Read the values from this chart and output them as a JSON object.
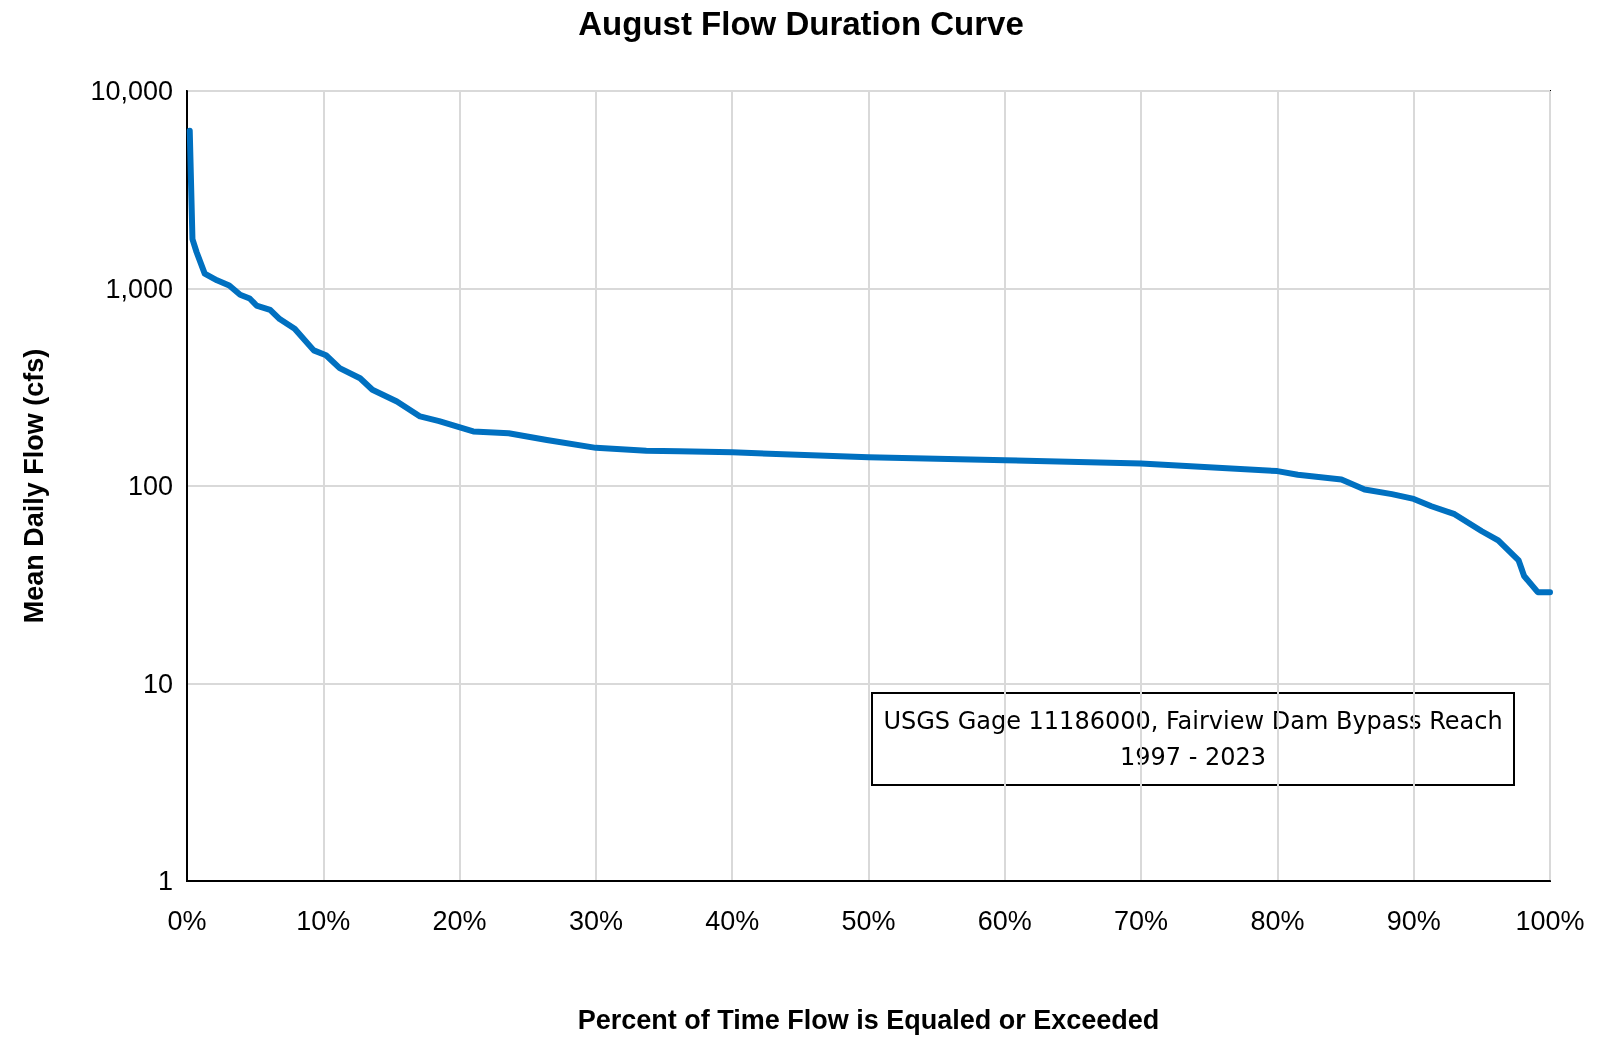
{
  "chart_data": {
    "type": "line",
    "title": "August Flow Duration Curve",
    "xlabel": "Percent of Time Flow is Equaled or Exceeded",
    "ylabel": "Mean Daily Flow (cfs)",
    "annotations": [
      "USGS Gage 11186000, Fairview Dam Bypass Reach\n1997 - 2023"
    ],
    "x": [
      0.2,
      0.4,
      0.7,
      1.3,
      2.2,
      3.1,
      3.9,
      4.6,
      5.1,
      6.1,
      6.8,
      7.9,
      9.3,
      10.2,
      11.2,
      12.7,
      13.6,
      15.4,
      17.1,
      18.5,
      21,
      23.6,
      26.4,
      30,
      33.7,
      36.1,
      40,
      50,
      60,
      70,
      80,
      81.5,
      84.7,
      86.4,
      88.4,
      90,
      91.3,
      93,
      95,
      96.2,
      97.7,
      98.1,
      99.1,
      100
    ],
    "series": [
      {
        "color": "#0070c0",
        "values": [
          6300,
          1780,
          1530,
          1190,
          1100,
          1035,
          930,
          890,
          820,
          780,
          700,
          626,
          486,
          459,
          395,
          351,
          307,
          268,
          225,
          213,
          189,
          185,
          171,
          156,
          151,
          150,
          148,
          140,
          135,
          130,
          119,
          114,
          108,
          96,
          91,
          86,
          79,
          72,
          59,
          53,
          42,
          35,
          29,
          29
        ]
      }
    ],
    "xlim": [
      0,
      100
    ],
    "ylim": [
      1,
      10000
    ],
    "log": "y",
    "xticks": [
      {
        "value": 0,
        "label": "0%"
      },
      {
        "value": 10,
        "label": "10%"
      },
      {
        "value": 20,
        "label": "20%"
      },
      {
        "value": 30,
        "label": "30%"
      },
      {
        "value": 40,
        "label": "40%"
      },
      {
        "value": 50,
        "label": "50%"
      },
      {
        "value": 60,
        "label": "60%"
      },
      {
        "value": 70,
        "label": "70%"
      },
      {
        "value": 80,
        "label": "80%"
      },
      {
        "value": 90,
        "label": "90%"
      },
      {
        "value": 100,
        "label": "100%"
      }
    ],
    "yticks": [
      1,
      10,
      100,
      {
        "value": 1000,
        "label": "1,000"
      },
      {
        "value": 10000,
        "label": "10,000"
      }
    ],
    "grid": true,
    "marker": "none",
    "line_style": "solid"
  }
}
